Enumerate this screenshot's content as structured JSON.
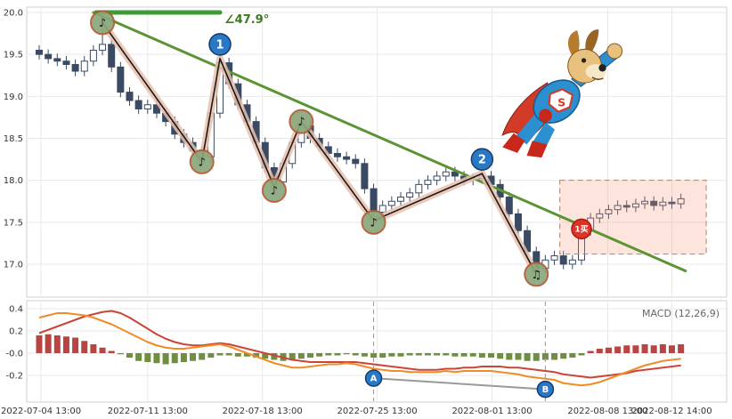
{
  "chart_data": {
    "type": "candlestick+macd",
    "x_tick_labels": [
      "2022-07-04 13:00",
      "2022-07-11 13:00",
      "2022-07-18 13:00",
      "2022-07-25 13:00",
      "2022-08-01 13:00",
      "2022-08-08 13:00",
      "2022-08-12 14:00"
    ],
    "x_tick_indices": [
      0.2,
      12.0,
      24.7,
      37.4,
      50.1,
      62.9,
      70.0
    ],
    "price_panel": {
      "y_tick_labels": [
        "20.0",
        "19.5",
        "19.0",
        "18.5",
        "18.0",
        "17.5",
        "17.0"
      ],
      "y_tick_values": [
        20.0,
        19.5,
        19.0,
        18.5,
        18.0,
        17.5,
        17.0
      ],
      "ylim": [
        16.6,
        20.06
      ],
      "angle_label": "∠47.9°",
      "candles_ohlc": [
        [
          19.55,
          19.61,
          19.44,
          19.5
        ],
        [
          19.5,
          19.56,
          19.39,
          19.45
        ],
        [
          19.45,
          19.51,
          19.36,
          19.42
        ],
        [
          19.42,
          19.48,
          19.32,
          19.38
        ],
        [
          19.38,
          19.44,
          19.24,
          19.3
        ],
        [
          19.3,
          19.48,
          19.24,
          19.42
        ],
        [
          19.42,
          19.61,
          19.36,
          19.55
        ],
        [
          19.55,
          19.88,
          19.49,
          19.62
        ],
        [
          19.62,
          19.68,
          19.29,
          19.35
        ],
        [
          19.35,
          19.41,
          18.99,
          19.05
        ],
        [
          19.05,
          19.11,
          18.89,
          18.95
        ],
        [
          18.95,
          19.01,
          18.79,
          18.85
        ],
        [
          18.85,
          18.96,
          18.79,
          18.9
        ],
        [
          18.9,
          18.96,
          18.74,
          18.8
        ],
        [
          18.8,
          18.86,
          18.64,
          18.7
        ],
        [
          18.7,
          18.76,
          18.49,
          18.55
        ],
        [
          18.55,
          18.61,
          18.39,
          18.45
        ],
        [
          18.45,
          18.51,
          18.29,
          18.35
        ],
        [
          18.35,
          18.41,
          18.18,
          18.28
        ],
        [
          18.28,
          18.86,
          18.22,
          18.8
        ],
        [
          18.8,
          19.52,
          18.74,
          19.4
        ],
        [
          19.4,
          19.46,
          19.09,
          19.15
        ],
        [
          19.15,
          19.21,
          18.84,
          18.9
        ],
        [
          18.9,
          18.96,
          18.64,
          18.7
        ],
        [
          18.7,
          18.76,
          18.39,
          18.45
        ],
        [
          18.45,
          18.51,
          18.09,
          18.15
        ],
        [
          18.15,
          18.21,
          17.88,
          17.98
        ],
        [
          17.98,
          18.26,
          17.92,
          18.2
        ],
        [
          18.2,
          18.51,
          18.14,
          18.45
        ],
        [
          18.45,
          18.76,
          18.39,
          18.65
        ],
        [
          18.65,
          18.71,
          18.44,
          18.5
        ],
        [
          18.5,
          18.56,
          18.34,
          18.4
        ],
        [
          18.4,
          18.46,
          18.26,
          18.32
        ],
        [
          18.32,
          18.38,
          18.22,
          18.28
        ],
        [
          18.28,
          18.34,
          18.19,
          18.25
        ],
        [
          18.25,
          18.31,
          18.14,
          18.2
        ],
        [
          18.2,
          18.26,
          17.84,
          17.9
        ],
        [
          17.9,
          17.96,
          17.48,
          17.62
        ],
        [
          17.62,
          17.76,
          17.56,
          17.7
        ],
        [
          17.7,
          17.81,
          17.64,
          17.75
        ],
        [
          17.75,
          17.86,
          17.69,
          17.8
        ],
        [
          17.8,
          17.91,
          17.74,
          17.85
        ],
        [
          17.85,
          18.01,
          17.79,
          17.95
        ],
        [
          17.95,
          18.06,
          17.89,
          18.0
        ],
        [
          18.0,
          18.11,
          17.94,
          18.05
        ],
        [
          18.05,
          18.16,
          17.99,
          18.1
        ],
        [
          18.1,
          18.16,
          17.99,
          18.05
        ],
        [
          18.05,
          18.11,
          17.94,
          18.0
        ],
        [
          18.0,
          18.08,
          17.94,
          18.02
        ],
        [
          18.02,
          18.16,
          17.96,
          18.05
        ],
        [
          18.05,
          18.11,
          17.89,
          17.95
        ],
        [
          17.95,
          18.01,
          17.74,
          17.8
        ],
        [
          17.8,
          17.86,
          17.54,
          17.6
        ],
        [
          17.6,
          17.66,
          17.34,
          17.4
        ],
        [
          17.4,
          17.46,
          17.09,
          17.15
        ],
        [
          17.15,
          17.21,
          16.84,
          16.95
        ],
        [
          16.95,
          17.11,
          16.89,
          17.05
        ],
        [
          17.05,
          17.16,
          16.99,
          17.1
        ],
        [
          17.1,
          17.16,
          16.94,
          17.0
        ],
        [
          17.0,
          17.11,
          16.94,
          17.05
        ],
        [
          17.05,
          17.46,
          16.99,
          17.4
        ],
        [
          17.4,
          17.61,
          17.34,
          17.55
        ],
        [
          17.55,
          17.66,
          17.49,
          17.6
        ],
        [
          17.6,
          17.71,
          17.54,
          17.65
        ],
        [
          17.65,
          17.76,
          17.59,
          17.7
        ],
        [
          17.7,
          17.76,
          17.62,
          17.68
        ],
        [
          17.68,
          17.78,
          17.62,
          17.72
        ],
        [
          17.72,
          17.81,
          17.66,
          17.75
        ],
        [
          17.75,
          17.81,
          17.64,
          17.7
        ],
        [
          17.7,
          17.8,
          17.64,
          17.74
        ],
        [
          17.74,
          17.8,
          17.66,
          17.72
        ],
        [
          17.72,
          17.84,
          17.66,
          17.78
        ]
      ],
      "zigzag_points": [
        [
          7,
          19.88
        ],
        [
          18,
          18.22
        ],
        [
          20,
          19.45
        ],
        [
          26,
          17.92
        ],
        [
          29,
          18.7
        ],
        [
          37,
          17.52
        ],
        [
          49,
          18.08
        ],
        [
          55,
          16.88
        ]
      ],
      "note_markers": [
        {
          "index": 7,
          "price": 19.88,
          "glyph": "♪"
        },
        {
          "index": 18,
          "price": 18.22,
          "glyph": "♪"
        },
        {
          "index": 26,
          "price": 17.88,
          "glyph": "♪"
        },
        {
          "index": 29,
          "price": 18.7,
          "glyph": "♪"
        },
        {
          "index": 37,
          "price": 17.5,
          "glyph": "♪"
        },
        {
          "index": 55,
          "price": 16.88,
          "glyph": "♫"
        }
      ],
      "numbered_markers": [
        {
          "label": "1",
          "index": 20,
          "price": 19.45
        },
        {
          "label": "2",
          "index": 49,
          "price": 18.08
        }
      ],
      "buy_marker": {
        "label": "1买",
        "index": 60,
        "price": 17.42
      },
      "trendline": {
        "from_index": 6.0,
        "from_price": 20.0,
        "to_index": 71.5,
        "to_price": 16.92
      },
      "horizontal_line": {
        "from_index": 6.3,
        "to_index": 20.0,
        "price": 20.0
      },
      "highlight_box": {
        "from_index": 57.6,
        "to_index": 73.8,
        "top_price": 18.0,
        "bottom_price": 17.12
      }
    },
    "macd_panel": {
      "legend": "MACD (12,26,9)",
      "y_tick_labels": [
        "0.4",
        "0.2",
        "-0.0",
        "-0.2"
      ],
      "y_tick_values": [
        0.4,
        0.2,
        0.0,
        -0.2
      ],
      "ylim": [
        -0.44,
        0.456
      ],
      "histogram": [
        0.16,
        0.17,
        0.16,
        0.15,
        0.14,
        0.11,
        0.08,
        0.05,
        0.02,
        -0.01,
        -0.04,
        -0.07,
        -0.08,
        -0.09,
        -0.1,
        -0.09,
        -0.08,
        -0.07,
        -0.06,
        -0.04,
        -0.02,
        -0.02,
        -0.03,
        -0.03,
        -0.04,
        -0.05,
        -0.06,
        -0.07,
        -0.06,
        -0.05,
        -0.04,
        -0.03,
        -0.02,
        -0.02,
        -0.01,
        -0.02,
        -0.03,
        -0.04,
        -0.04,
        -0.03,
        -0.03,
        -0.02,
        -0.02,
        -0.02,
        -0.02,
        -0.02,
        -0.03,
        -0.03,
        -0.03,
        -0.04,
        -0.04,
        -0.05,
        -0.06,
        -0.06,
        -0.07,
        -0.07,
        -0.06,
        -0.06,
        -0.05,
        -0.04,
        -0.02,
        0.02,
        0.04,
        0.05,
        0.06,
        0.07,
        0.07,
        0.08,
        0.07,
        0.08,
        0.07,
        0.08
      ],
      "dif_line": [
        0.32,
        0.34,
        0.36,
        0.36,
        0.35,
        0.34,
        0.32,
        0.29,
        0.26,
        0.22,
        0.18,
        0.14,
        0.1,
        0.07,
        0.05,
        0.04,
        0.04,
        0.05,
        0.06,
        0.07,
        0.08,
        0.06,
        0.03,
        0.0,
        -0.03,
        -0.06,
        -0.09,
        -0.11,
        -0.13,
        -0.13,
        -0.12,
        -0.11,
        -0.1,
        -0.1,
        -0.09,
        -0.1,
        -0.12,
        -0.14,
        -0.15,
        -0.16,
        -0.16,
        -0.17,
        -0.17,
        -0.17,
        -0.17,
        -0.16,
        -0.17,
        -0.16,
        -0.16,
        -0.16,
        -0.16,
        -0.17,
        -0.18,
        -0.19,
        -0.21,
        -0.22,
        -0.23,
        -0.24,
        -0.27,
        -0.28,
        -0.29,
        -0.28,
        -0.26,
        -0.23,
        -0.2,
        -0.17,
        -0.14,
        -0.11,
        -0.09,
        -0.07,
        -0.06,
        -0.05
      ],
      "dea_line": [
        0.18,
        0.21,
        0.24,
        0.27,
        0.3,
        0.33,
        0.35,
        0.37,
        0.38,
        0.36,
        0.32,
        0.27,
        0.22,
        0.17,
        0.13,
        0.1,
        0.08,
        0.07,
        0.07,
        0.08,
        0.09,
        0.08,
        0.06,
        0.04,
        0.02,
        0.0,
        -0.02,
        -0.04,
        -0.06,
        -0.07,
        -0.08,
        -0.08,
        -0.08,
        -0.08,
        -0.08,
        -0.08,
        -0.09,
        -0.1,
        -0.11,
        -0.12,
        -0.13,
        -0.14,
        -0.15,
        -0.15,
        -0.15,
        -0.14,
        -0.14,
        -0.13,
        -0.13,
        -0.12,
        -0.12,
        -0.12,
        -0.13,
        -0.13,
        -0.14,
        -0.15,
        -0.16,
        -0.17,
        -0.19,
        -0.2,
        -0.21,
        -0.22,
        -0.21,
        -0.2,
        -0.19,
        -0.18,
        -0.16,
        -0.15,
        -0.14,
        -0.13,
        -0.12,
        -0.11
      ],
      "divergence_markers": [
        {
          "label": "A",
          "index": 37,
          "value": -0.225
        },
        {
          "label": "B",
          "index": 56,
          "value": -0.325
        }
      ],
      "dashed_vline_indices": [
        37,
        56
      ]
    },
    "colors": {
      "candle_up_fill": "#ffffff",
      "candle_body": "#3a4a63",
      "trend_green": "#5b9432",
      "flat_green": "#3f9c35",
      "zigzag_glow": "#e9c0ad",
      "zigzag": "#1a1a1a",
      "note_fill": "#8aa87c",
      "note_border": "#b35a33",
      "number_fill": "#2878c8",
      "number_border": "#173a68",
      "buy_red": "#e03226",
      "buy_border": "#a02018",
      "hist_pos": "#b74642",
      "hist_neg": "#6f8f3e",
      "dif_orange": "#f08c28",
      "dea_red": "#cc4437",
      "divergence_gray": "#9a9a9a",
      "box_fill": "rgba(246,150,121,0.25)",
      "box_border": "#b0846a",
      "dashed_line": "#999999"
    }
  }
}
